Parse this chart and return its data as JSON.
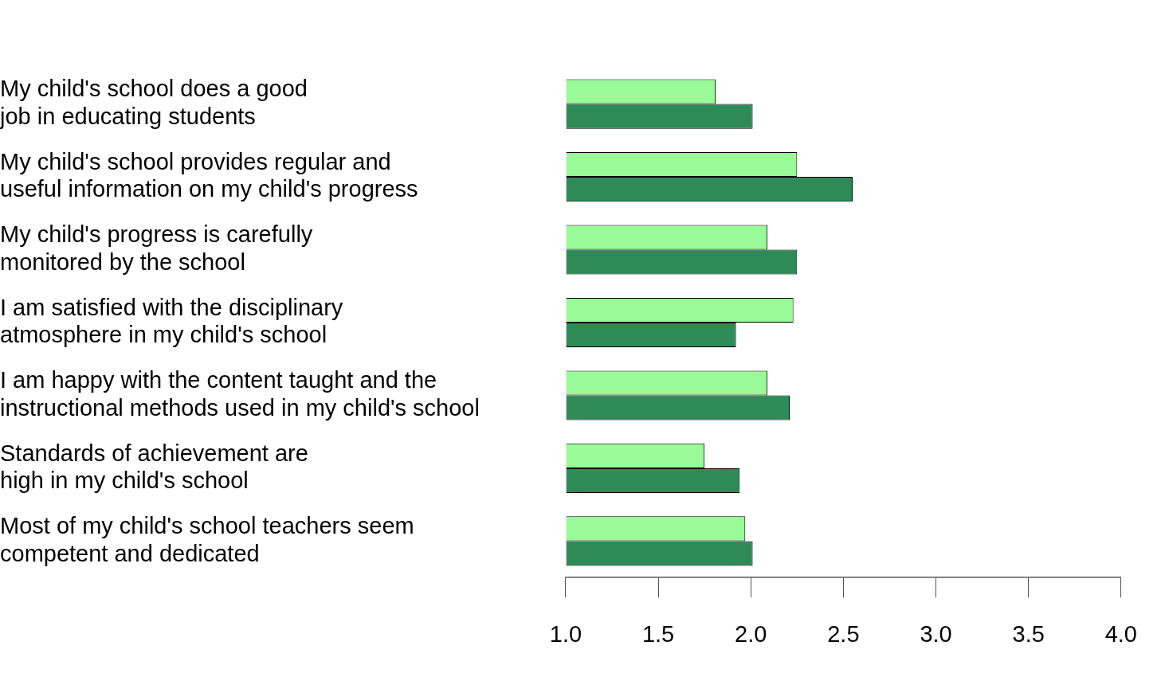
{
  "chart_data": {
    "type": "bar",
    "orientation": "horizontal",
    "categories": [
      "My child's school does a good\njob in educating students",
      "My child's school provides regular and\nuseful information on my child's progress",
      "My child's progress is carefully\nmonitored by the school",
      "I am satisfied with the disciplinary\natmosphere in my child's school",
      "I am happy with the content taught and the\ninstructional methods used in my child's school",
      "Standards of achievement are\nhigh in my child's school",
      "Most of my child's school teachers seem\ncompetent and dedicated"
    ],
    "series": [
      {
        "color": "#98fb98",
        "values": [
          1.81,
          2.25,
          2.09,
          2.23,
          2.09,
          1.75,
          1.97
        ]
      },
      {
        "color": "#2e8b57",
        "values": [
          2.01,
          2.55,
          2.25,
          1.92,
          2.21,
          1.94,
          2.01
        ]
      }
    ],
    "xlim": [
      1,
      4
    ],
    "xticks": [
      {
        "value": 1,
        "label": "1.0"
      },
      {
        "value": 1.5,
        "label": "1.5"
      },
      {
        "value": 2,
        "label": "2.0"
      },
      {
        "value": 2.5,
        "label": "2.5"
      },
      {
        "value": 3,
        "label": "3.0"
      },
      {
        "value": 3.5,
        "label": "3.5"
      },
      {
        "value": 4,
        "label": "4.0"
      }
    ]
  }
}
